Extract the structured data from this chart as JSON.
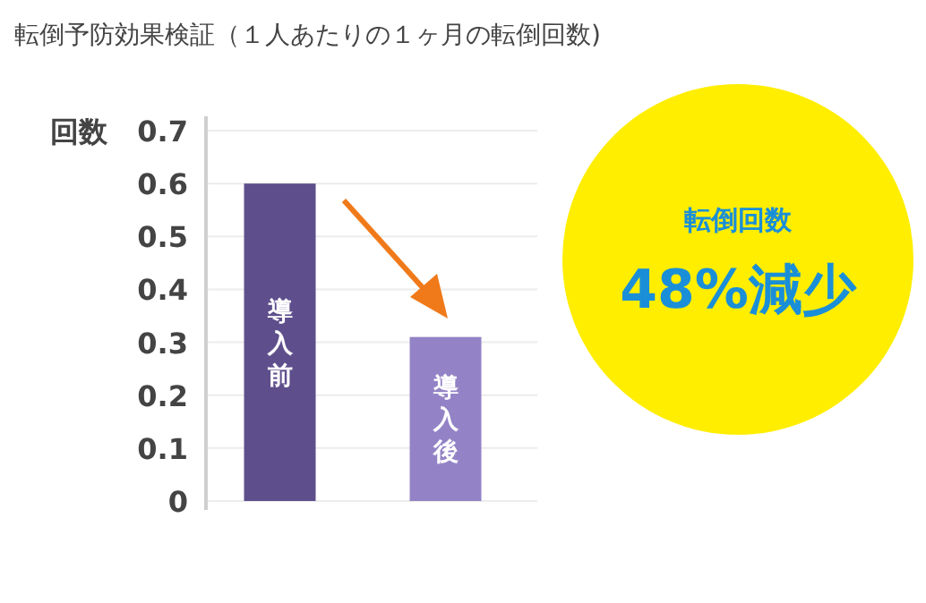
{
  "chart_data": {
    "type": "bar",
    "title": "転倒予防効果検証（１人あたりの１ヶ月の転倒回数)",
    "ylabel": "回数",
    "categories": [
      "導入前",
      "導入後"
    ],
    "values": [
      0.6,
      0.31
    ],
    "colors": [
      "#5e4f8c",
      "#9383c6"
    ],
    "ylim": [
      0,
      0.7
    ],
    "yticks": [
      0,
      0.1,
      0.2,
      0.3,
      0.4,
      0.5,
      0.6,
      0.7
    ],
    "grid": "y",
    "annotations": [
      "転倒回数",
      "48%減少"
    ]
  }
}
